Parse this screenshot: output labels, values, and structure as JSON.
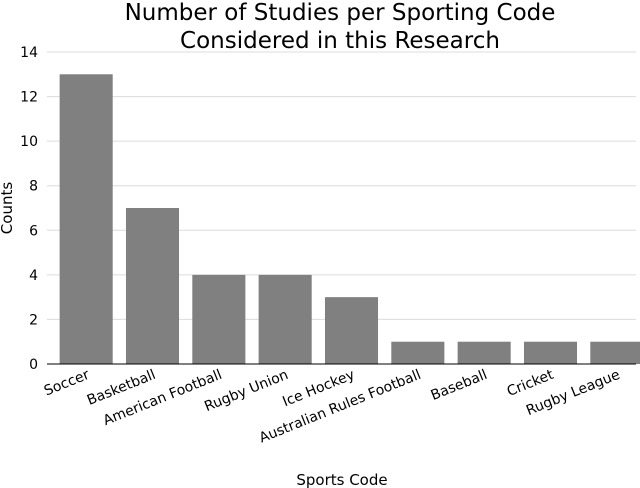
{
  "chart_data": {
    "type": "bar",
    "title": "Number of Studies per Sporting Code\nConsidered in this Research",
    "xlabel": "Sports Code",
    "ylabel": "Counts",
    "categories": [
      "Soccer",
      "Basketball",
      "American Football",
      "Rugby Union",
      "Ice Hockey",
      "Australian Rules Football",
      "Baseball",
      "Cricket",
      "Rugby League"
    ],
    "values": [
      13,
      7,
      4,
      4,
      3,
      1,
      1,
      1,
      1
    ],
    "ylim": [
      0,
      14
    ],
    "yticks": [
      0,
      2,
      4,
      6,
      8,
      10,
      12,
      14
    ],
    "grid": "horizontal",
    "bar_color": "#808080"
  }
}
